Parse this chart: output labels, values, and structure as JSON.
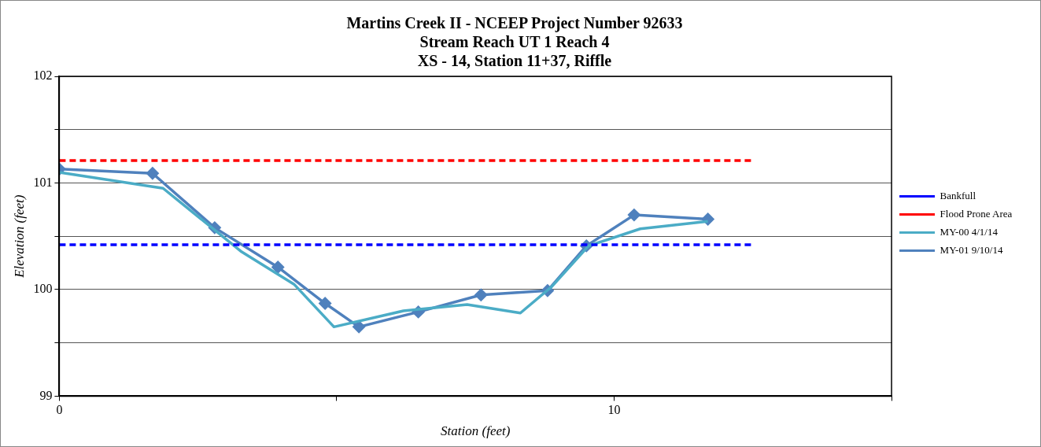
{
  "chart_data": {
    "type": "line",
    "title": "Martins Creek II - NCEEP Project Number 92633\nStream Reach UT 1 Reach 4\nXS - 14, Station 11+37, Riffle",
    "xlabel": "Station (feet)",
    "ylabel": "Elevation (feet)",
    "xlim": [
      0,
      15
    ],
    "xticks": [
      0,
      {
        "value": 5,
        "label": null
      },
      10,
      {
        "value": 15,
        "label": null
      }
    ],
    "ylim": [
      99,
      102
    ],
    "yticks": [
      99,
      {
        "value": 99.5,
        "label": null
      },
      100,
      {
        "value": 100.5,
        "label": null
      },
      101,
      {
        "value": 101.5,
        "label": null
      },
      102
    ],
    "grid": "y",
    "legend": "right",
    "series": [
      {
        "name": "Bankfull",
        "color": "#0000ff",
        "line_style": "dashed",
        "marker": "none",
        "x": [
          0,
          12.5
        ],
        "values": [
          100.42,
          100.42
        ]
      },
      {
        "name": "Flood Prone Area",
        "color": "#ff0000",
        "line_style": "dashed",
        "marker": "none",
        "x": [
          0,
          12.5
        ],
        "values": [
          101.21,
          101.21
        ]
      },
      {
        "name": "MY-00 4/1/14",
        "color": "#4bacc6",
        "line_style": "solid",
        "marker": "none",
        "x": [
          0,
          1.87,
          3.27,
          4.23,
          4.95,
          6.2,
          7.35,
          8.31,
          8.88,
          9.54,
          10.47,
          11.69
        ],
        "values": [
          101.1,
          100.95,
          100.36,
          100.05,
          99.65,
          99.8,
          99.86,
          99.78,
          100.03,
          100.41,
          100.57,
          100.64
        ]
      },
      {
        "name": "MY-01 9/10/14",
        "color": "#4f81bd",
        "line_style": "solid",
        "marker": "diamond",
        "x": [
          0,
          1.68,
          2.8,
          3.94,
          4.79,
          5.4,
          6.47,
          7.6,
          8.8,
          9.5,
          10.36,
          11.69
        ],
        "values": [
          101.13,
          101.09,
          100.58,
          100.21,
          99.87,
          99.65,
          99.79,
          99.95,
          99.99,
          100.41,
          100.7,
          100.66
        ]
      }
    ]
  }
}
